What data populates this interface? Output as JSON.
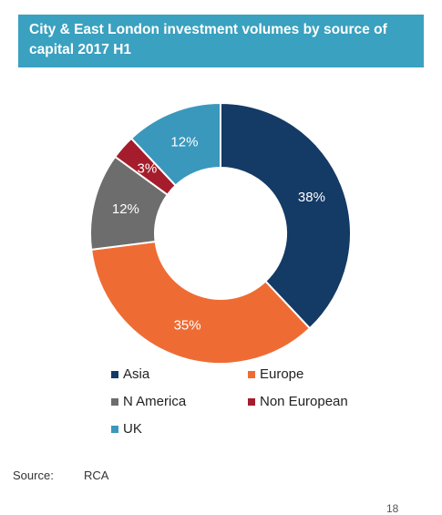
{
  "title": "City & East London investment volumes by source of capital 2017 H1",
  "colors": {
    "title_background": "#3aa1c0",
    "Asia": "#143a66",
    "Europe": "#ee6c34",
    "N America": "#6d6d6d",
    "Non European": "#a51d2c",
    "UK": "#3a98bd"
  },
  "chart_data": {
    "type": "pie",
    "style": "donut",
    "title": "City & East London investment volumes by source of capital 2017 H1",
    "slices": [
      {
        "label": "Asia",
        "value": 38,
        "display": "38%"
      },
      {
        "label": "Europe",
        "value": 35,
        "display": "35%"
      },
      {
        "label": "N America",
        "value": 12,
        "display": "12%"
      },
      {
        "label": "Non European",
        "value": 3,
        "display": "3%"
      },
      {
        "label": "UK",
        "value": 12,
        "display": "12%"
      }
    ],
    "start": "top",
    "direction": "clockwise",
    "legend_position": "bottom"
  },
  "legend": {
    "items": [
      "Asia",
      "Europe",
      "N America",
      "Non European",
      "UK"
    ]
  },
  "source": {
    "label": "Source:",
    "value": "RCA"
  },
  "page_number": "18"
}
